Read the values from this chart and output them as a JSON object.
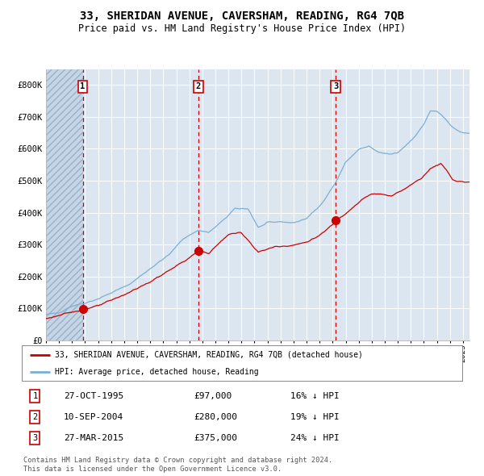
{
  "title": "33, SHERIDAN AVENUE, CAVERSHAM, READING, RG4 7QB",
  "subtitle": "Price paid vs. HM Land Registry's House Price Index (HPI)",
  "legend_line1": "33, SHERIDAN AVENUE, CAVERSHAM, READING, RG4 7QB (detached house)",
  "legend_line2": "HPI: Average price, detached house, Reading",
  "ylim": [
    0,
    850000
  ],
  "ytick_labels": [
    "£0",
    "£100K",
    "£200K",
    "£300K",
    "£400K",
    "£500K",
    "£600K",
    "£700K",
    "£800K"
  ],
  "ytick_values": [
    0,
    100000,
    200000,
    300000,
    400000,
    500000,
    600000,
    700000,
    800000
  ],
  "plot_bg_color": "#dce6f1",
  "grid_color": "#ffffff",
  "red_line_color": "#cc0000",
  "blue_line_color": "#7bafd4",
  "vline_color": "#cc0000",
  "purchases": [
    {
      "date_num": 1995.82,
      "price": 97000,
      "label": "1",
      "date_str": "27-OCT-1995",
      "price_str": "£97,000",
      "note": "16% ↓ HPI"
    },
    {
      "date_num": 2004.69,
      "price": 280000,
      "label": "2",
      "date_str": "10-SEP-2004",
      "price_str": "£280,000",
      "note": "19% ↓ HPI"
    },
    {
      "date_num": 2015.23,
      "price": 375000,
      "label": "3",
      "date_str": "27-MAR-2015",
      "price_str": "£375,000",
      "note": "24% ↓ HPI"
    }
  ],
  "footnote1": "Contains HM Land Registry data © Crown copyright and database right 2024.",
  "footnote2": "This data is licensed under the Open Government Licence v3.0.",
  "hatch_end_year": 1995.82,
  "xmin": 1993,
  "xmax": 2025.5
}
